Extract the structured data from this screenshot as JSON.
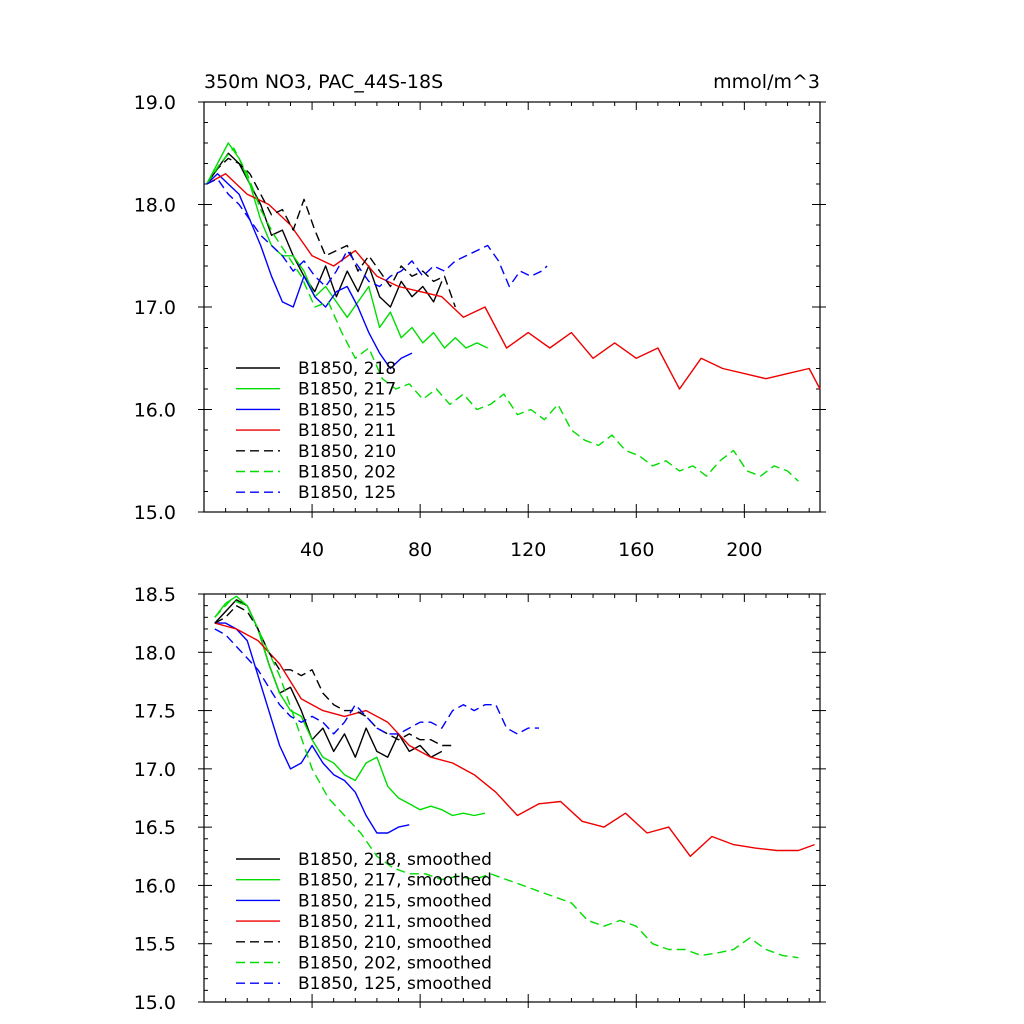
{
  "chart_data": [
    {
      "type": "line",
      "title": "350m NO3, PAC_44S-18S",
      "units_label": "mmol/m^3",
      "xlabel": "",
      "ylabel": "",
      "xlim": [
        0,
        228
      ],
      "ylim": [
        15.0,
        19.0
      ],
      "xticks": [
        40,
        80,
        120,
        160,
        200
      ],
      "xtick_labels": [
        "40",
        "80",
        "120",
        "160",
        "200"
      ],
      "yticks": [
        15.0,
        16.0,
        17.0,
        18.0,
        19.0
      ],
      "ytick_labels": [
        "15.0",
        "16.0",
        "17.0",
        "18.0",
        "19.0"
      ],
      "legend_position": "lower-left",
      "grid": false,
      "series": [
        {
          "name": "B1850, 218",
          "color": "#000000",
          "dash": "solid",
          "x": [
            1,
            5,
            9,
            13,
            17,
            21,
            25,
            29,
            33,
            37,
            41,
            45,
            49,
            53,
            57,
            61,
            65,
            69,
            73,
            77,
            81,
            85,
            88
          ],
          "y": [
            18.2,
            18.35,
            18.5,
            18.4,
            18.2,
            18.0,
            17.7,
            17.75,
            17.5,
            17.3,
            17.15,
            17.4,
            17.1,
            17.35,
            17.15,
            17.4,
            17.1,
            17.0,
            17.25,
            17.1,
            17.2,
            17.05,
            17.25
          ]
        },
        {
          "name": "B1850, 217",
          "color": "#00dd00",
          "dash": "solid",
          "x": [
            1,
            5,
            9,
            13,
            17,
            21,
            25,
            29,
            33,
            37,
            41,
            45,
            49,
            53,
            57,
            61,
            65,
            69,
            73,
            77,
            81,
            85,
            89,
            93,
            97,
            101,
            105
          ],
          "y": [
            18.2,
            18.4,
            18.6,
            18.45,
            18.2,
            17.85,
            17.6,
            17.5,
            17.5,
            17.35,
            17.1,
            17.2,
            17.05,
            16.9,
            17.05,
            17.2,
            16.8,
            16.95,
            16.7,
            16.8,
            16.65,
            16.75,
            16.6,
            16.7,
            16.6,
            16.65,
            16.6
          ]
        },
        {
          "name": "B1850, 215",
          "color": "#0000ff",
          "dash": "solid",
          "x": [
            1,
            5,
            9,
            13,
            17,
            21,
            25,
            29,
            33,
            37,
            41,
            45,
            49,
            53,
            57,
            61,
            65,
            69,
            73,
            77
          ],
          "y": [
            18.2,
            18.3,
            18.2,
            18.1,
            17.85,
            17.6,
            17.3,
            17.05,
            17.0,
            17.3,
            17.1,
            17.0,
            17.15,
            17.2,
            17.0,
            16.75,
            16.55,
            16.4,
            16.5,
            16.55
          ]
        },
        {
          "name": "B1850, 211",
          "color": "#ee0000",
          "dash": "solid",
          "x": [
            1,
            8,
            16,
            24,
            32,
            40,
            48,
            56,
            64,
            72,
            80,
            88,
            96,
            104,
            112,
            120,
            128,
            136,
            144,
            152,
            160,
            168,
            176,
            184,
            192,
            200,
            208,
            216,
            224,
            228
          ],
          "y": [
            18.2,
            18.3,
            18.1,
            18.0,
            17.8,
            17.5,
            17.4,
            17.55,
            17.3,
            17.2,
            17.15,
            17.1,
            16.9,
            17.0,
            16.6,
            16.75,
            16.6,
            16.75,
            16.5,
            16.65,
            16.5,
            16.6,
            16.2,
            16.5,
            16.4,
            16.35,
            16.3,
            16.35,
            16.4,
            16.2
          ]
        },
        {
          "name": "B1850, 210",
          "color": "#000000",
          "dash": "dashed",
          "x": [
            1,
            5,
            9,
            13,
            17,
            21,
            25,
            29,
            33,
            37,
            41,
            45,
            49,
            53,
            57,
            61,
            65,
            69,
            73,
            77,
            81,
            85,
            89,
            93
          ],
          "y": [
            18.2,
            18.35,
            18.45,
            18.4,
            18.3,
            18.1,
            17.9,
            17.95,
            17.75,
            18.05,
            17.75,
            17.5,
            17.55,
            17.6,
            17.35,
            17.5,
            17.35,
            17.2,
            17.4,
            17.3,
            17.35,
            17.25,
            17.3,
            17.0
          ]
        },
        {
          "name": "B1850, 202",
          "color": "#00dd00",
          "dash": "dashed",
          "x": [
            1,
            6,
            11,
            16,
            21,
            26,
            31,
            36,
            41,
            46,
            51,
            56,
            61,
            66,
            71,
            76,
            81,
            86,
            91,
            96,
            101,
            106,
            111,
            116,
            121,
            126,
            131,
            136,
            141,
            146,
            151,
            156,
            161,
            166,
            171,
            176,
            181,
            186,
            191,
            196,
            201,
            206,
            211,
            216,
            220
          ],
          "y": [
            18.2,
            18.4,
            18.55,
            18.3,
            17.95,
            17.7,
            17.5,
            17.3,
            17.0,
            17.05,
            16.75,
            16.5,
            16.6,
            16.3,
            16.2,
            16.25,
            16.1,
            16.2,
            16.05,
            16.15,
            16.0,
            16.05,
            16.15,
            15.95,
            16.0,
            15.9,
            16.05,
            15.8,
            15.7,
            15.65,
            15.75,
            15.6,
            15.55,
            15.45,
            15.5,
            15.4,
            15.45,
            15.35,
            15.5,
            15.6,
            15.4,
            15.35,
            15.45,
            15.4,
            15.3
          ]
        },
        {
          "name": "B1850, 125",
          "color": "#0000ff",
          "dash": "dashed",
          "x": [
            1,
            5,
            9,
            13,
            17,
            21,
            25,
            29,
            33,
            37,
            41,
            45,
            49,
            53,
            57,
            61,
            65,
            69,
            73,
            77,
            81,
            85,
            89,
            93,
            97,
            101,
            105,
            109,
            113,
            117,
            121,
            125,
            127
          ],
          "y": [
            18.2,
            18.25,
            18.1,
            18.0,
            17.85,
            17.7,
            17.6,
            17.5,
            17.35,
            17.45,
            17.3,
            17.2,
            17.35,
            17.55,
            17.4,
            17.25,
            17.2,
            17.3,
            17.35,
            17.45,
            17.3,
            17.4,
            17.35,
            17.45,
            17.5,
            17.55,
            17.6,
            17.45,
            17.2,
            17.35,
            17.3,
            17.35,
            17.4
          ]
        }
      ]
    },
    {
      "type": "line",
      "title": "",
      "xlabel": "",
      "ylabel": "",
      "xlim": [
        0,
        228
      ],
      "ylim": [
        15.0,
        18.5
      ],
      "yticks": [
        15.0,
        15.5,
        16.0,
        16.5,
        17.0,
        17.5,
        18.0,
        18.5
      ],
      "ytick_labels": [
        "15.0",
        "15.5",
        "16.0",
        "16.5",
        "17.0",
        "17.5",
        "18.0",
        "18.5"
      ],
      "legend_position": "lower-left",
      "grid": false,
      "series": [
        {
          "name": "B1850, 218, smoothed",
          "color": "#000000",
          "dash": "solid",
          "x": [
            4,
            8,
            12,
            16,
            20,
            24,
            28,
            32,
            36,
            40,
            44,
            48,
            52,
            56,
            60,
            64,
            68,
            72,
            76,
            80,
            84,
            88
          ],
          "y": [
            18.25,
            18.35,
            18.45,
            18.4,
            18.2,
            17.9,
            17.65,
            17.7,
            17.5,
            17.25,
            17.35,
            17.15,
            17.3,
            17.1,
            17.35,
            17.15,
            17.1,
            17.3,
            17.15,
            17.2,
            17.1,
            17.15
          ]
        },
        {
          "name": "B1850, 217, smoothed",
          "color": "#00dd00",
          "dash": "solid",
          "x": [
            4,
            8,
            12,
            16,
            20,
            24,
            28,
            32,
            36,
            40,
            44,
            48,
            52,
            56,
            60,
            64,
            68,
            72,
            76,
            80,
            84,
            88,
            92,
            96,
            100,
            104
          ],
          "y": [
            18.3,
            18.42,
            18.48,
            18.4,
            18.2,
            17.9,
            17.65,
            17.5,
            17.45,
            17.25,
            17.1,
            17.05,
            16.95,
            16.9,
            17.05,
            17.1,
            16.85,
            16.75,
            16.7,
            16.65,
            16.68,
            16.65,
            16.6,
            16.62,
            16.6,
            16.62
          ]
        },
        {
          "name": "B1850, 215, smoothed",
          "color": "#0000ff",
          "dash": "solid",
          "x": [
            4,
            8,
            12,
            16,
            20,
            24,
            28,
            32,
            36,
            40,
            44,
            48,
            52,
            56,
            60,
            64,
            68,
            72,
            76
          ],
          "y": [
            18.25,
            18.25,
            18.2,
            18.1,
            17.8,
            17.5,
            17.2,
            17.0,
            17.05,
            17.2,
            17.05,
            16.95,
            16.9,
            16.8,
            16.6,
            16.45,
            16.45,
            16.5,
            16.52
          ]
        },
        {
          "name": "B1850, 211, smoothed",
          "color": "#ee0000",
          "dash": "solid",
          "x": [
            4,
            12,
            20,
            28,
            36,
            44,
            52,
            60,
            68,
            76,
            84,
            92,
            100,
            108,
            116,
            124,
            132,
            140,
            148,
            156,
            164,
            172,
            180,
            188,
            196,
            204,
            212,
            220,
            226
          ],
          "y": [
            18.25,
            18.2,
            18.1,
            17.9,
            17.6,
            17.5,
            17.45,
            17.5,
            17.4,
            17.2,
            17.1,
            17.05,
            16.95,
            16.8,
            16.6,
            16.7,
            16.72,
            16.55,
            16.5,
            16.62,
            16.45,
            16.5,
            16.25,
            16.42,
            16.35,
            16.32,
            16.3,
            16.3,
            16.35
          ]
        },
        {
          "name": "B1850, 210, smoothed",
          "color": "#000000",
          "dash": "dashed",
          "x": [
            4,
            8,
            12,
            16,
            20,
            24,
            28,
            32,
            36,
            40,
            44,
            48,
            52,
            56,
            60,
            64,
            68,
            72,
            76,
            80,
            84,
            88,
            92
          ],
          "y": [
            18.25,
            18.3,
            18.4,
            18.35,
            18.2,
            18.0,
            17.85,
            17.85,
            17.8,
            17.85,
            17.65,
            17.55,
            17.5,
            17.5,
            17.45,
            17.35,
            17.3,
            17.25,
            17.3,
            17.25,
            17.25,
            17.2,
            17.2
          ]
        },
        {
          "name": "B1850, 202, smoothed",
          "color": "#00dd00",
          "dash": "dashed",
          "x": [
            4,
            10,
            16,
            22,
            28,
            34,
            40,
            46,
            52,
            58,
            64,
            70,
            76,
            82,
            88,
            94,
            100,
            106,
            112,
            118,
            124,
            130,
            136,
            142,
            148,
            154,
            160,
            166,
            172,
            178,
            184,
            190,
            196,
            202,
            208,
            214,
            220
          ],
          "y": [
            18.3,
            18.45,
            18.4,
            18.1,
            17.8,
            17.4,
            17.0,
            16.75,
            16.6,
            16.45,
            16.25,
            16.15,
            16.1,
            16.1,
            16.05,
            16.08,
            16.05,
            16.1,
            16.05,
            16.0,
            15.95,
            15.9,
            15.85,
            15.7,
            15.65,
            15.7,
            15.65,
            15.5,
            15.45,
            15.45,
            15.4,
            15.42,
            15.45,
            15.55,
            15.45,
            15.4,
            15.38
          ]
        },
        {
          "name": "B1850, 125, smoothed",
          "color": "#0000ff",
          "dash": "dashed",
          "x": [
            4,
            8,
            12,
            16,
            20,
            24,
            28,
            32,
            36,
            40,
            44,
            48,
            52,
            56,
            60,
            64,
            68,
            72,
            76,
            80,
            84,
            88,
            92,
            96,
            100,
            104,
            108,
            112,
            116,
            120,
            124
          ],
          "y": [
            18.2,
            18.15,
            18.05,
            17.95,
            17.85,
            17.7,
            17.55,
            17.45,
            17.4,
            17.45,
            17.4,
            17.3,
            17.4,
            17.55,
            17.45,
            17.35,
            17.3,
            17.3,
            17.35,
            17.4,
            17.4,
            17.35,
            17.5,
            17.55,
            17.5,
            17.55,
            17.55,
            17.35,
            17.3,
            17.35,
            17.35
          ]
        }
      ]
    }
  ]
}
